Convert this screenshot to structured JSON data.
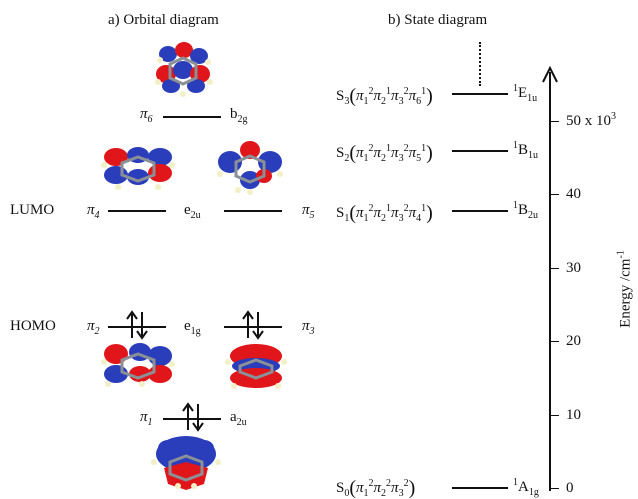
{
  "panel_a": {
    "title": "a) Orbital diagram",
    "lumo_label": "LUMO",
    "homo_label": "HOMO",
    "orbitals": {
      "pi6": {
        "sym": "π",
        "idx": "6",
        "irrep_main": "b",
        "irrep_sub": "2g"
      },
      "pi4": {
        "sym": "π",
        "idx": "4"
      },
      "pi5": {
        "sym": "π",
        "idx": "5"
      },
      "e2u": {
        "irrep_main": "e",
        "irrep_sub": "2u"
      },
      "pi2": {
        "sym": "π",
        "idx": "2"
      },
      "pi3": {
        "sym": "π",
        "idx": "3"
      },
      "e1g": {
        "irrep_main": "e",
        "irrep_sub": "1g"
      },
      "pi1": {
        "sym": "π",
        "idx": "1",
        "irrep_main": "a",
        "irrep_sub": "2u"
      }
    },
    "colors": {
      "lobe_red": "#e0161b",
      "lobe_blue": "#2a3dbb",
      "carbon": "#8a9096",
      "hydrogen": "#f2f0c6"
    }
  },
  "panel_b": {
    "title": "b) State diagram",
    "states": [
      {
        "name": "S",
        "sub": "3",
        "term_sup": "1",
        "term_main": "E",
        "term_sub": "1u",
        "config": [
          {
            "i": "1",
            "e": "2"
          },
          {
            "i": "2",
            "e": "1"
          },
          {
            "i": "3",
            "e": "2"
          },
          {
            "i": "6",
            "e": "1"
          }
        ],
        "energy": 51000
      },
      {
        "name": "S",
        "sub": "2",
        "term_sup": "1",
        "term_main": "B",
        "term_sub": "1u",
        "config": [
          {
            "i": "1",
            "e": "2"
          },
          {
            "i": "2",
            "e": "1"
          },
          {
            "i": "3",
            "e": "2"
          },
          {
            "i": "5",
            "e": "1"
          }
        ],
        "energy": 45000
      },
      {
        "name": "S",
        "sub": "1",
        "term_sup": "1",
        "term_main": "B",
        "term_sub": "2u",
        "config": [
          {
            "i": "1",
            "e": "2"
          },
          {
            "i": "2",
            "e": "1"
          },
          {
            "i": "3",
            "e": "2"
          },
          {
            "i": "4",
            "e": "1"
          }
        ],
        "energy": 38000
      },
      {
        "name": "S",
        "sub": "0",
        "term_sup": "1",
        "term_main": "A",
        "term_sub": "1g",
        "config": [
          {
            "i": "1",
            "e": "2"
          },
          {
            "i": "2",
            "e": "2"
          },
          {
            "i": "3",
            "e": "2"
          }
        ],
        "energy": 0
      }
    ],
    "axis": {
      "label": "Energy /cm",
      "label_sup": "-1",
      "ticks": [
        "0",
        "10",
        "20",
        "30",
        "40",
        "50 x 10"
      ],
      "top_tick_sup": "3"
    }
  }
}
